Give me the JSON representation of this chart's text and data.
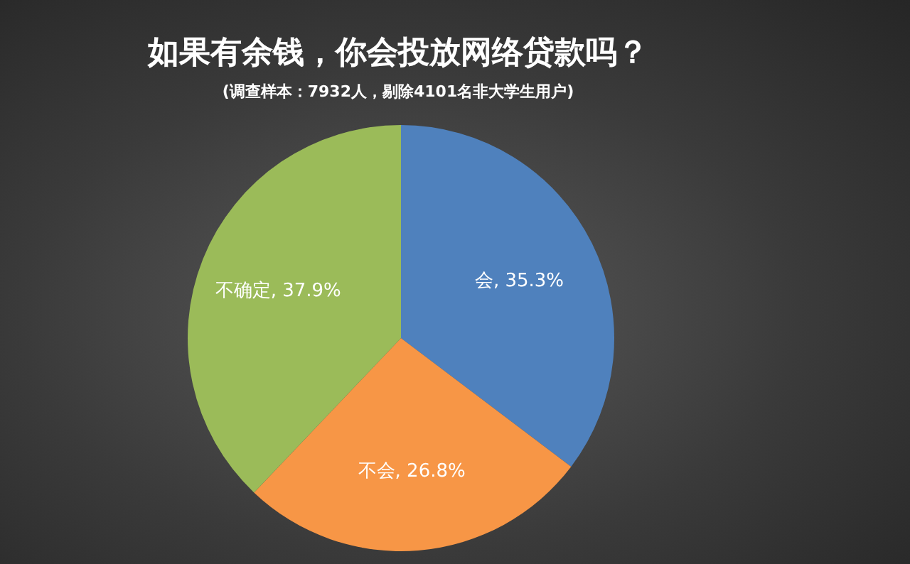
{
  "chart_data": {
    "type": "pie",
    "title": "如果有余钱，你会投放网络贷款吗？",
    "subtitle": "(调查样本：7932人，剔除4101名非大学生用户)",
    "categories": [
      "会",
      "不会",
      "不确定"
    ],
    "values": [
      35.3,
      26.8,
      37.9
    ],
    "colors": [
      "#4f81bd",
      "#f79646",
      "#9bbb59"
    ],
    "value_labels": [
      "35.3%",
      "26.8%",
      "37.9%"
    ]
  }
}
